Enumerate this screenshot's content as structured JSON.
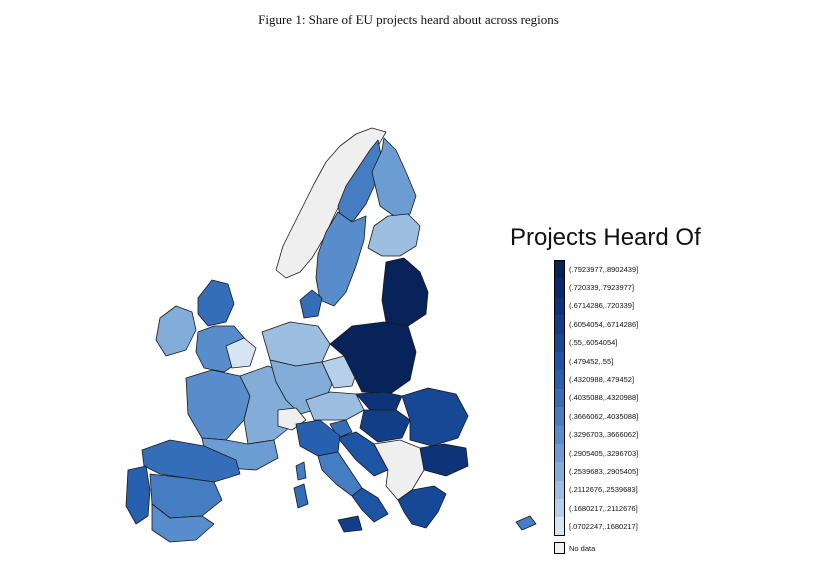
{
  "caption": "Figure 1: Share of EU projects heard about across regions",
  "legend": {
    "title": "Projects Heard Of",
    "items": [
      {
        "label": "(.7923977,.8902439]",
        "color": "#08225a"
      },
      {
        "label": "(.720339,.7923977]",
        "color": "#0a2b6a"
      },
      {
        "label": "(.6714286,.720339]",
        "color": "#0d3478"
      },
      {
        "label": "(.6054054,.6714286]",
        "color": "#113e87"
      },
      {
        "label": "(.55,.6054054]",
        "color": "#164896"
      },
      {
        "label": "(.479452,.55]",
        "color": "#1d54a3"
      },
      {
        "label": "(.4320988,.479452]",
        "color": "#2760ae"
      },
      {
        "label": "(.4035088,.4320988]",
        "color": "#346db8"
      },
      {
        "label": "(.3666062,.4035088]",
        "color": "#447dc1"
      },
      {
        "label": "(.3296703,.3666062]",
        "color": "#578dca"
      },
      {
        "label": "(.2905405,.3296703]",
        "color": "#6c9dd2"
      },
      {
        "label": "(.2539683,.2905405]",
        "color": "#82add9"
      },
      {
        "label": "(.2112676,.2539683]",
        "color": "#9bbee1"
      },
      {
        "label": "(.1680217,.2112676]",
        "color": "#b7d0ea"
      },
      {
        "label": "[.0702247,.1680217]",
        "color": "#d6e4f4"
      }
    ],
    "no_data": {
      "label": "No data",
      "color": "#f2f2f2"
    }
  }
}
